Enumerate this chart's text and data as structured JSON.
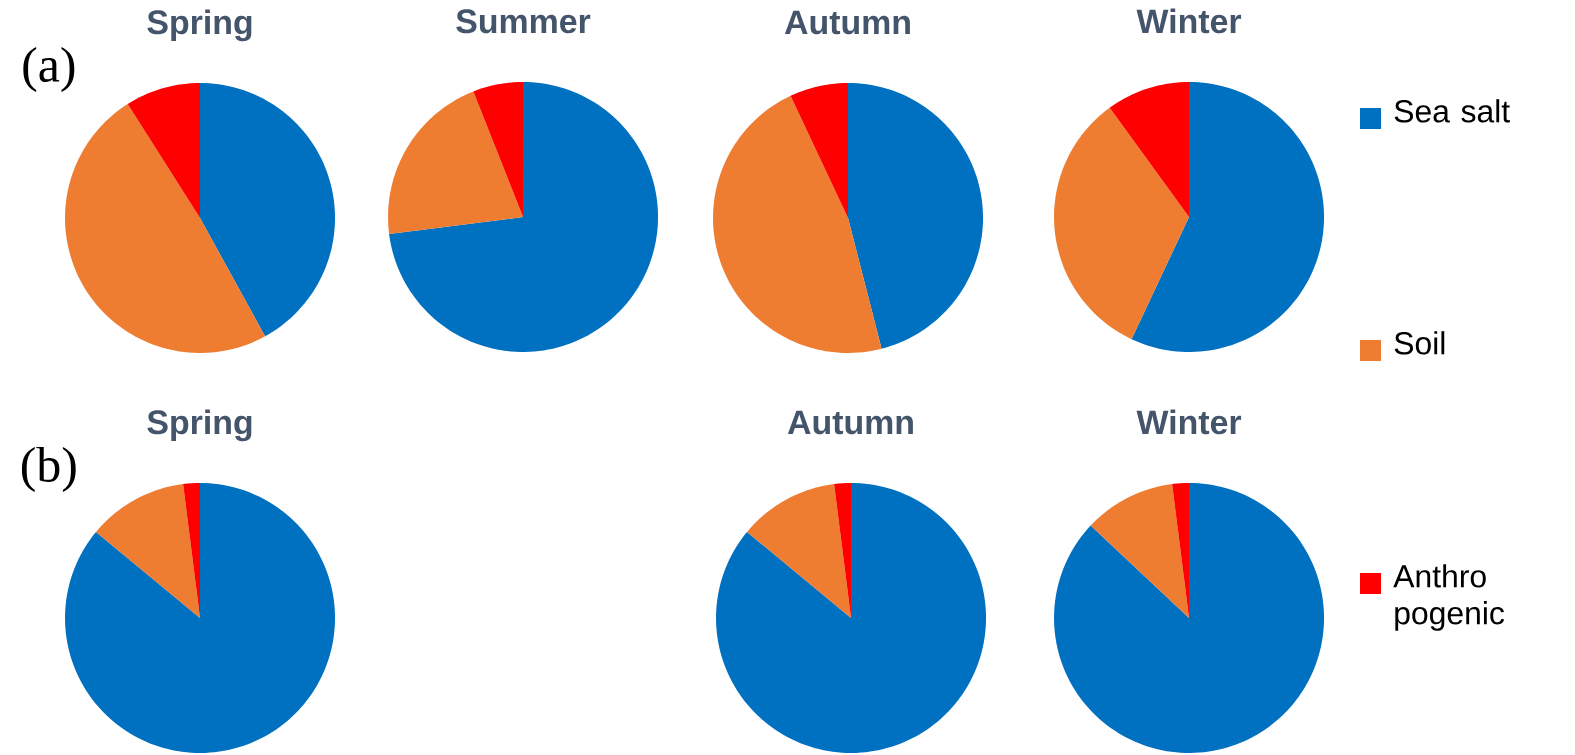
{
  "chart_data": [
    {
      "type": "pie",
      "title": "Spring",
      "categories": [
        "Sea salt",
        "Soil",
        "Anthro pogenic"
      ],
      "values": [
        42,
        49,
        9
      ],
      "colors": [
        "#0070c0",
        "#ee7d31",
        "#ff0000"
      ],
      "legend": "right",
      "annotations": [
        "(a)"
      ]
    },
    {
      "type": "pie",
      "title": "Summer",
      "categories": [
        null,
        null,
        null
      ],
      "values": [
        73,
        21,
        6
      ],
      "colors": [
        "#0070c0",
        "#ee7d31",
        "#ff0000"
      ]
    },
    {
      "type": "pie",
      "title": "Autumn",
      "categories": [
        null,
        null,
        null
      ],
      "values": [
        46,
        47,
        7
      ],
      "colors": [
        "#0070c0",
        "#ee7d31",
        "#ff0000"
      ]
    },
    {
      "type": "pie",
      "title": "Winter",
      "categories": [
        null,
        null,
        null
      ],
      "values": [
        57,
        33,
        10
      ],
      "colors": [
        "#0070c0",
        "#ee7d31",
        "#ff0000"
      ]
    },
    {
      "type": "pie",
      "title": "Spring",
      "categories": [
        null,
        null,
        null
      ],
      "values": [
        86,
        12,
        2
      ],
      "colors": [
        "#0070c0",
        "#ee7d31",
        "#ff0000"
      ],
      "annotations": [
        "(b)"
      ]
    },
    {
      "type": "pie",
      "title": "Autumn",
      "categories": [
        null,
        null,
        null
      ],
      "values": [
        86,
        12,
        2
      ],
      "colors": [
        "#0070c0",
        "#ee7d31",
        "#ff0000"
      ]
    },
    {
      "type": "pie",
      "title": "Winter",
      "categories": [
        null,
        null,
        null
      ],
      "values": [
        87,
        11,
        2
      ],
      "colors": [
        "#0070c0",
        "#ee7d31",
        "#ff0000"
      ]
    }
  ]
}
